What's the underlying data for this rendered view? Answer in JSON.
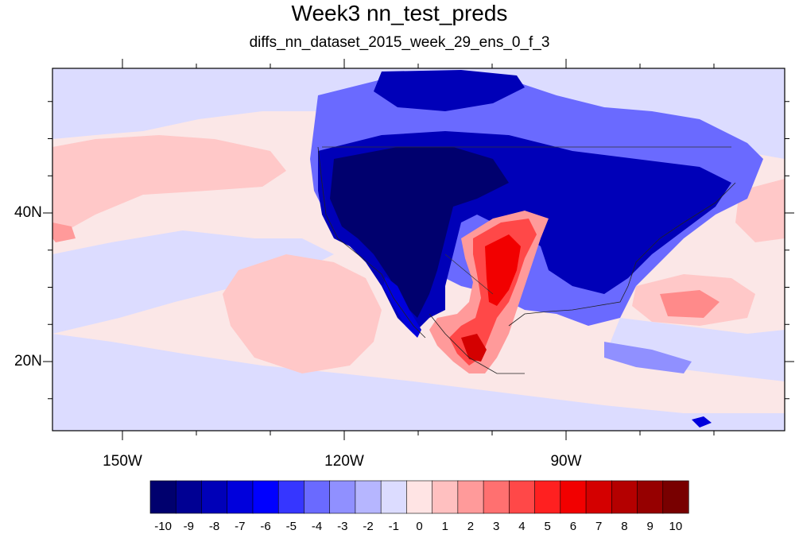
{
  "title": "Week3 nn_test_preds",
  "subtitle": "diffs_nn_dataset_2015_week_29_ens_0_f_3",
  "axes": {
    "y_ticks": [
      {
        "label": "40N",
        "lat": 40
      },
      {
        "label": "20N",
        "lat": 20
      }
    ],
    "x_ticks": [
      {
        "label": "150W",
        "lon": -150
      },
      {
        "label": "120W",
        "lon": -120
      },
      {
        "label": "90W",
        "lon": -90
      }
    ]
  },
  "colorbar": {
    "labels": [
      "-10",
      "-9",
      "-8",
      "-7",
      "-6",
      "-5",
      "-4",
      "-3",
      "-2",
      "-1",
      "0",
      "1",
      "2",
      "3",
      "4",
      "5",
      "6",
      "7",
      "8",
      "9",
      "10"
    ],
    "colors": [
      "#00006e",
      "#000093",
      "#0000b8",
      "#0000dc",
      "#0000ff",
      "#3636ff",
      "#6a6aff",
      "#9090ff",
      "#b6b6ff",
      "#dcdcff",
      "#ffe4e4",
      "#ffc0c0",
      "#ff9a9a",
      "#ff7070",
      "#ff4848",
      "#ff2020",
      "#f20000",
      "#d40000",
      "#b40000",
      "#960000",
      "#780000"
    ]
  },
  "colors": {
    "background": "#ffffff",
    "ocean_neutral": "#fbe7e7",
    "weak_negative": "#dcdcff",
    "weak_positive": "#ffc8c8",
    "strong_negative": "#00007a",
    "strong_positive": "#ff1a1a"
  }
}
